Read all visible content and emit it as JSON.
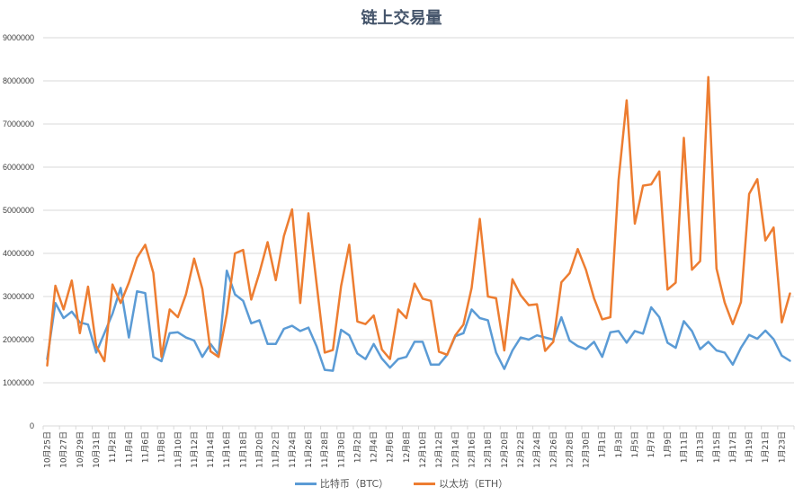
{
  "chart_data": {
    "type": "line",
    "title": "链上交易量",
    "xlabel": "",
    "ylabel": "",
    "ylim": [
      0,
      9000000
    ],
    "yticks": [
      0,
      1000000,
      2000000,
      3000000,
      4000000,
      5000000,
      6000000,
      7000000,
      8000000,
      9000000
    ],
    "grid": true,
    "legend_position": "bottom",
    "x": [
      "10月25日",
      "10月26日",
      "10月27日",
      "10月28日",
      "10月29日",
      "10月30日",
      "10月31日",
      "11月1日",
      "11月2日",
      "11月3日",
      "11月4日",
      "11月5日",
      "11月6日",
      "11月7日",
      "11月8日",
      "11月9日",
      "11月10日",
      "11月11日",
      "11月12日",
      "11月13日",
      "11月14日",
      "11月15日",
      "11月16日",
      "11月17日",
      "11月18日",
      "11月19日",
      "11月20日",
      "11月21日",
      "11月22日",
      "11月23日",
      "11月24日",
      "11月25日",
      "11月26日",
      "11月27日",
      "11月28日",
      "11月29日",
      "11月30日",
      "12月1日",
      "12月2日",
      "12月3日",
      "12月4日",
      "12月5日",
      "12月6日",
      "12月7日",
      "12月8日",
      "12月9日",
      "12月10日",
      "12月11日",
      "12月12日",
      "12月13日",
      "12月14日",
      "12月15日",
      "12月16日",
      "12月17日",
      "12月18日",
      "12月19日",
      "12月20日",
      "12月21日",
      "12月22日",
      "12月23日",
      "12月24日",
      "12月25日",
      "12月26日",
      "12月27日",
      "12月28日",
      "12月29日",
      "12月30日",
      "12月31日",
      "1月1日",
      "1月2日",
      "1月3日",
      "1月4日",
      "1月5日",
      "1月6日",
      "1月7日",
      "1月8日",
      "1月9日",
      "1月10日",
      "1月11日",
      "1月12日",
      "1月13日",
      "1月14日",
      "1月15日",
      "1月16日",
      "1月17日",
      "1月18日",
      "1月19日",
      "1月20日",
      "1月21日",
      "1月22日",
      "1月23日",
      "1月24日"
    ],
    "xtick_labels": [
      "10月25日",
      "10月27日",
      "10月29日",
      "10月31日",
      "11月2日",
      "11月4日",
      "11月6日",
      "11月8日",
      "11月10日",
      "11月12日",
      "11月14日",
      "11月16日",
      "11月18日",
      "11月20日",
      "11月22日",
      "11月24日",
      "11月26日",
      "11月28日",
      "11月30日",
      "12月2日",
      "12月4日",
      "12月6日",
      "12月8日",
      "12月10日",
      "12月12日",
      "12月14日",
      "12月16日",
      "12月18日",
      "12月20日",
      "12月22日",
      "12月24日",
      "12月26日",
      "12月28日",
      "12月30日",
      "1月1日",
      "1月3日",
      "1月5日",
      "1月7日",
      "1月9日",
      "1月11日",
      "1月13日",
      "1月15日",
      "1月17日",
      "1月19日",
      "1月21日",
      "1月23日"
    ],
    "series": [
      {
        "name": "比特币（BTC）",
        "color": "#5b9bd5",
        "values": [
          1550000,
          2850000,
          2500000,
          2650000,
          2400000,
          2350000,
          1700000,
          2150000,
          2600000,
          3200000,
          2050000,
          3120000,
          3080000,
          1600000,
          1500000,
          2150000,
          2170000,
          2050000,
          1980000,
          1600000,
          1900000,
          1650000,
          3600000,
          3050000,
          2900000,
          2380000,
          2450000,
          1900000,
          1900000,
          2250000,
          2320000,
          2200000,
          2280000,
          1850000,
          1300000,
          1280000,
          2230000,
          2100000,
          1680000,
          1550000,
          1900000,
          1560000,
          1350000,
          1550000,
          1600000,
          1950000,
          1950000,
          1420000,
          1420000,
          1650000,
          2080000,
          2150000,
          2700000,
          2500000,
          2450000,
          1700000,
          1320000,
          1750000,
          2050000,
          2000000,
          2100000,
          2050000,
          2000000,
          2520000,
          1980000,
          1850000,
          1780000,
          1950000,
          1600000,
          2170000,
          2200000,
          1930000,
          2200000,
          2140000,
          2750000,
          2520000,
          1930000,
          1810000,
          2430000,
          2200000,
          1780000,
          1950000,
          1750000,
          1700000,
          1420000,
          1810000,
          2110000,
          2020000,
          2210000,
          2010000,
          1630000,
          1510000
        ]
      },
      {
        "name": "以太坊（ETH）",
        "color": "#ed7d31",
        "values": [
          1400000,
          3250000,
          2700000,
          3370000,
          2150000,
          3230000,
          1850000,
          1500000,
          3280000,
          2850000,
          3320000,
          3900000,
          4200000,
          3550000,
          1600000,
          2700000,
          2520000,
          3050000,
          3880000,
          3180000,
          1730000,
          1600000,
          2600000,
          4000000,
          4080000,
          2930000,
          3550000,
          4260000,
          3380000,
          4400000,
          5020000,
          2850000,
          4930000,
          3310000,
          1700000,
          1760000,
          3240000,
          4200000,
          2420000,
          2360000,
          2560000,
          1770000,
          1550000,
          2700000,
          2500000,
          3300000,
          2950000,
          2900000,
          1720000,
          1650000,
          2100000,
          2350000,
          3200000,
          4800000,
          3000000,
          2960000,
          1750000,
          3400000,
          3030000,
          2800000,
          2820000,
          1740000,
          1950000,
          3330000,
          3540000,
          4100000,
          3620000,
          2960000,
          2470000,
          2520000,
          5700000,
          7550000,
          4690000,
          5570000,
          5600000,
          5900000,
          3160000,
          3320000,
          6680000,
          3620000,
          3820000,
          8090000,
          3650000,
          2860000,
          2360000,
          2870000,
          5380000,
          5720000,
          4300000,
          4600000,
          2400000,
          3070000
        ]
      }
    ]
  },
  "legend": {
    "btc_label": "比特币（BTC）",
    "eth_label": "以太坊（ETH）"
  }
}
